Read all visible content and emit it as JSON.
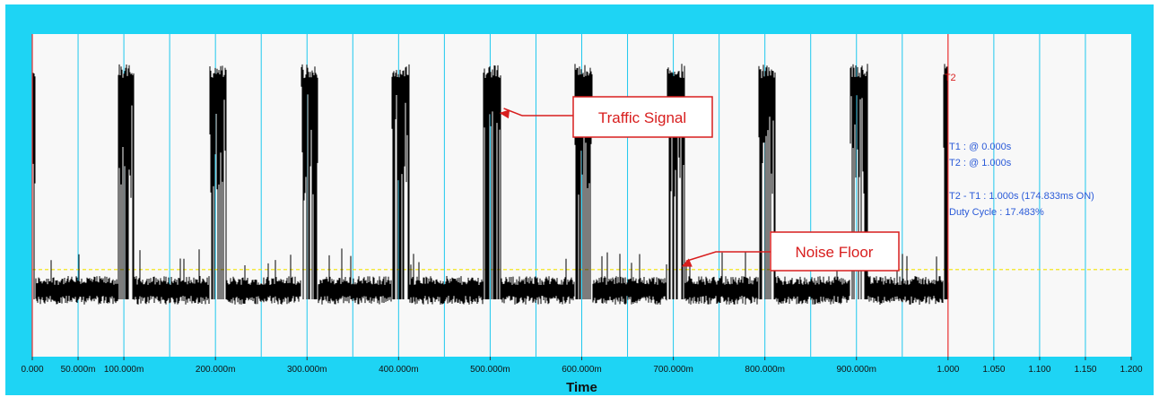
{
  "colors": {
    "frame": "#1ed4f4",
    "plot_background": "#f8f8f8",
    "grid": "#1ec8ee",
    "signal": "#000000",
    "threshold": "#f2e300",
    "cursor": "#e83030",
    "readout": "#2a5ad8",
    "callout_border": "#d81e1e",
    "callout_text": "#d81e1e"
  },
  "chart_data": {
    "type": "line",
    "xlabel": "Time",
    "ylabel": "",
    "title": "",
    "xlim": [
      0,
      1.2
    ],
    "ylim": [
      0,
      1
    ],
    "x_tick_values": [
      0,
      0.05,
      0.1,
      0.2,
      0.3,
      0.4,
      0.5,
      0.6,
      0.7,
      0.8,
      0.9,
      1.0,
      1.05,
      1.1,
      1.15,
      1.2
    ],
    "x_tick_labels": [
      "0.000",
      "50.000m",
      "100.000m",
      "200.000m",
      "300.000m",
      "400.000m",
      "500.000m",
      "600.000m",
      "700.000m",
      "800.000m",
      "900.000m",
      "1.000",
      "1.050",
      "1.100",
      "1.150",
      "1.200"
    ],
    "grid_x": [
      0.05,
      0.1,
      0.15,
      0.2,
      0.25,
      0.3,
      0.35,
      0.4,
      0.45,
      0.5,
      0.55,
      0.6,
      0.65,
      0.7,
      0.75,
      0.8,
      0.85,
      0.9,
      0.95,
      1.05,
      1.1,
      1.15
    ],
    "grid": true,
    "series": [
      {
        "high_level": 0.88,
        "noise_level": 0.2,
        "bursts": [
          [
            0.0,
            0.003
          ],
          [
            0.094,
            0.111
          ],
          [
            0.193,
            0.212
          ],
          [
            0.293,
            0.312
          ],
          [
            0.392,
            0.412
          ],
          [
            0.492,
            0.512
          ],
          [
            0.592,
            0.612
          ],
          [
            0.693,
            0.713
          ],
          [
            0.793,
            0.812
          ],
          [
            0.893,
            0.912
          ],
          [
            0.995,
            1.0
          ]
        ]
      }
    ],
    "threshold_level": 0.27,
    "cursors": [
      {
        "label": "T1",
        "x": 0.0
      },
      {
        "label": "T2",
        "x": 1.0
      }
    ],
    "readout": [
      "T1 : @ 0.000s",
      "T2 : @ 1.000s",
      "T2 - T1 : 1.000s (174.833ms ON)",
      "Duty Cycle : 17.483%"
    ],
    "annotations": [
      {
        "text": "Traffic Signal",
        "points_to_x": 0.508,
        "points_to_y": 0.6
      },
      {
        "text": "Noise Floor",
        "points_to_x": 0.706,
        "points_to_y": 0.21
      }
    ]
  }
}
